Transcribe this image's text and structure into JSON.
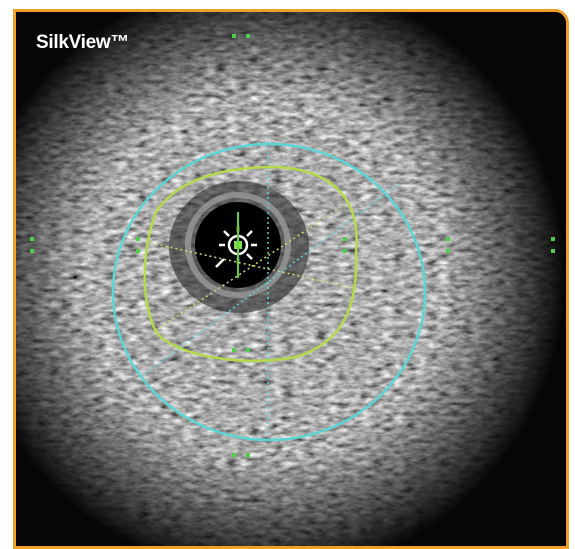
{
  "title": "SilkView™"
}
